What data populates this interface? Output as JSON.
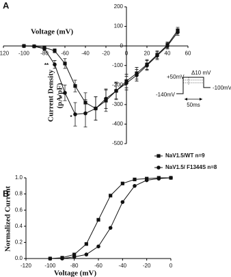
{
  "chart_data": [
    {
      "type": "line",
      "panel_label": "A",
      "xlabel": "Voltage (mV)",
      "ylabel": [
        "Current Density",
        "(pA/pF)"
      ],
      "x": [
        -100,
        -90,
        -80,
        -70,
        -60,
        -50,
        -40,
        -30,
        -20,
        -10,
        0,
        10,
        20,
        30,
        40,
        50
      ],
      "series": [
        {
          "name": "NaV1.5/WT n=9",
          "marker": "square",
          "color": "#111111",
          "values": [
            0,
            -2,
            -8,
            -25,
            -90,
            -205,
            -290,
            -320,
            -280,
            -230,
            -180,
            -140,
            -95,
            -45,
            5,
            80
          ],
          "errors": [
            2,
            3,
            5,
            10,
            25,
            30,
            50,
            60,
            55,
            45,
            35,
            30,
            25,
            20,
            15,
            15
          ]
        },
        {
          "name": "NaV1.5/ F1344S n=8",
          "marker": "circle",
          "color": "#111111",
          "values": [
            0,
            -2,
            -15,
            -95,
            -240,
            -350,
            -345,
            -320,
            -270,
            -230,
            -190,
            -150,
            -100,
            -50,
            0,
            70
          ],
          "errors": [
            2,
            3,
            8,
            20,
            40,
            60,
            70,
            60,
            50,
            40,
            35,
            30,
            25,
            20,
            15,
            15
          ]
        }
      ],
      "annotations": [
        "**",
        "*",
        "*"
      ],
      "inset": [
        "+50mV",
        "Δ10 mV",
        "-140mV",
        "-100mV",
        "50ms"
      ],
      "xlim": [
        -120,
        60
      ],
      "xticks": [
        -120,
        -100,
        -80,
        -60,
        -40,
        -20,
        0,
        20,
        40,
        60
      ],
      "ylim": [
        -500,
        200
      ],
      "yticks": [
        -500,
        -400,
        -300,
        -200,
        -100,
        0,
        100,
        200
      ]
    },
    {
      "type": "line",
      "panel_label": "B",
      "xlabel": "Voltage (mV)",
      "ylabel": [
        "Normalized Current"
      ],
      "x": [
        -100,
        -90,
        -80,
        -70,
        -60,
        -50,
        -40,
        -30,
        -20,
        -10,
        0
      ],
      "series": [
        {
          "marker": "square",
          "color": "#111111",
          "values": [
            0,
            0.01,
            0.05,
            0.18,
            0.48,
            0.78,
            0.93,
            0.98,
            0.99,
            1,
            1
          ]
        },
        {
          "marker": "circle",
          "color": "#111111",
          "values": [
            0,
            0,
            0.02,
            0.05,
            0.15,
            0.38,
            0.7,
            0.9,
            0.97,
            0.99,
            1
          ]
        }
      ],
      "xlim": [
        -120,
        0
      ],
      "xticks": [
        -120,
        -100,
        -80,
        -60,
        -40,
        -20,
        0
      ],
      "ylim": [
        0,
        1
      ],
      "yticks": [
        {
          "value": 0,
          "label": "0.0"
        },
        0.2,
        0.4,
        0.6,
        0.8,
        {
          "value": 1,
          "label": "1.0"
        }
      ]
    }
  ]
}
